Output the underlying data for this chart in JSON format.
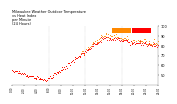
{
  "title": "Milwaukee Weather Outdoor Temperature\nvs Heat Index\nper Minute\n(24 Hours)",
  "title_fontsize": 2.5,
  "title_color": "#000000",
  "background_color": "#ffffff",
  "plot_bg_color": "#ffffff",
  "temp_color": "#ff0000",
  "heat_color": "#ff8800",
  "legend_box1_color": "#ff8800",
  "legend_box2_color": "#ff0000",
  "ylim": [
    40,
    100
  ],
  "yticks": [
    50,
    60,
    70,
    80,
    90,
    100
  ],
  "ylabel_fontsize": 2.5,
  "xlabel_fontsize": 1.8,
  "dot_size": 0.4,
  "num_points": 1440,
  "xlim": [
    0,
    1440
  ],
  "xtick_step": 120,
  "seed": 42
}
